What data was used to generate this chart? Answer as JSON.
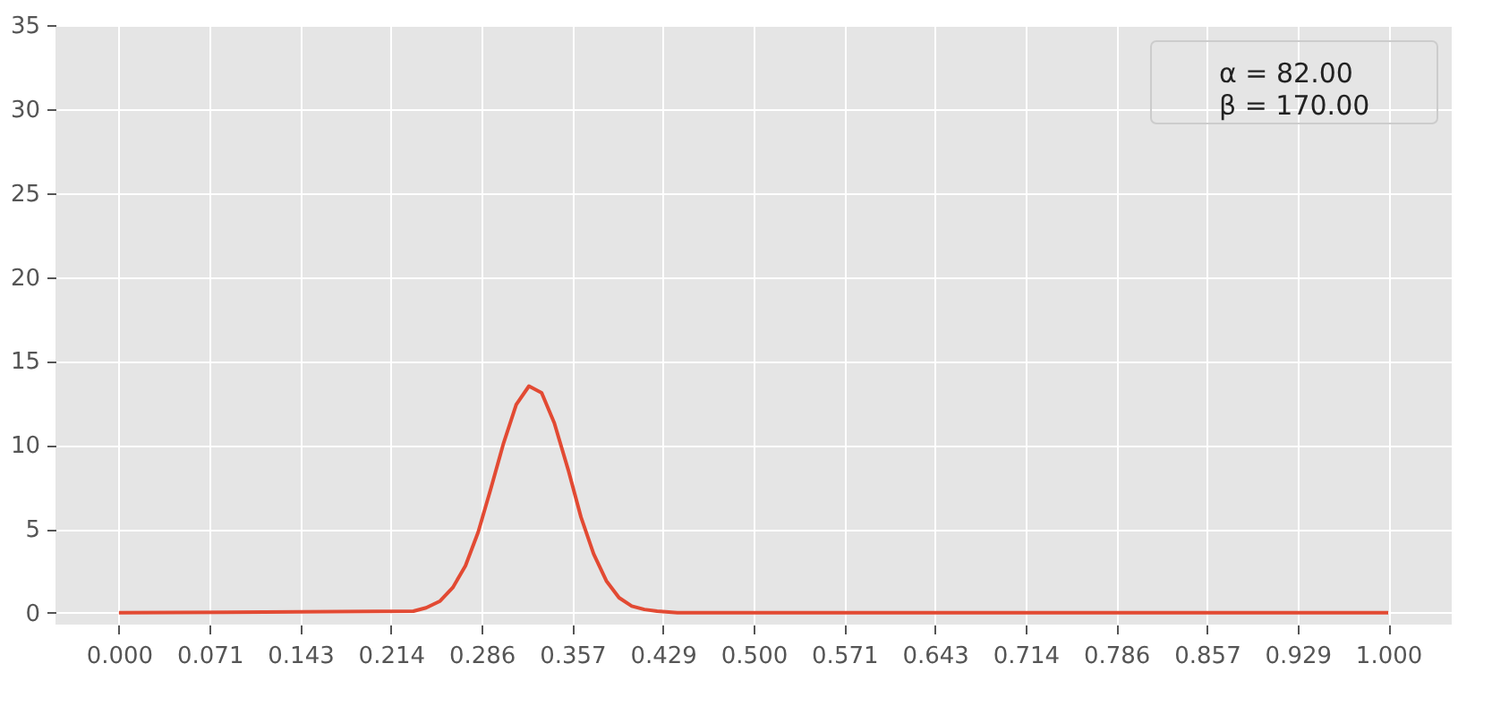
{
  "chart_data": {
    "type": "line",
    "series": [
      {
        "color": "#e24a33",
        "x": [
          0.0,
          0.232,
          0.242,
          0.253,
          0.263,
          0.273,
          0.283,
          0.293,
          0.303,
          0.313,
          0.323,
          0.333,
          0.343,
          0.354,
          0.364,
          0.374,
          0.384,
          0.394,
          0.404,
          0.414,
          0.424,
          0.44,
          1.0
        ],
        "values": [
          0,
          0.1,
          0.3,
          0.7,
          1.5,
          2.8,
          4.8,
          7.4,
          10.1,
          12.4,
          13.5,
          13.1,
          11.3,
          8.5,
          5.7,
          3.5,
          1.9,
          0.9,
          0.4,
          0.2,
          0.1,
          0,
          0
        ]
      }
    ],
    "annotations": [
      "α = 82.00",
      "β = 170.00"
    ],
    "xlim": [
      -0.05,
      1.05
    ],
    "xticks": [
      {
        "value": 0,
        "label": "0.000"
      },
      {
        "value": 0.0714286,
        "label": "0.071"
      },
      {
        "value": 0.1428571,
        "label": "0.143"
      },
      {
        "value": 0.2142857,
        "label": "0.214"
      },
      {
        "value": 0.2857143,
        "label": "0.286"
      },
      {
        "value": 0.3571429,
        "label": "0.357"
      },
      {
        "value": 0.4285714,
        "label": "0.429"
      },
      {
        "value": 0.5,
        "label": "0.500"
      },
      {
        "value": 0.5714286,
        "label": "0.571"
      },
      {
        "value": 0.6428571,
        "label": "0.643"
      },
      {
        "value": 0.7142857,
        "label": "0.714"
      },
      {
        "value": 0.7857143,
        "label": "0.786"
      },
      {
        "value": 0.8571429,
        "label": "0.857"
      },
      {
        "value": 0.9285714,
        "label": "0.929"
      },
      {
        "value": 1,
        "label": "1.000"
      }
    ],
    "ylim": [
      -0.7,
      35
    ],
    "yticks": [
      0,
      5,
      10,
      15,
      20,
      25,
      30,
      35
    ],
    "grid": true,
    "marker": "none",
    "line_style": "solid"
  }
}
